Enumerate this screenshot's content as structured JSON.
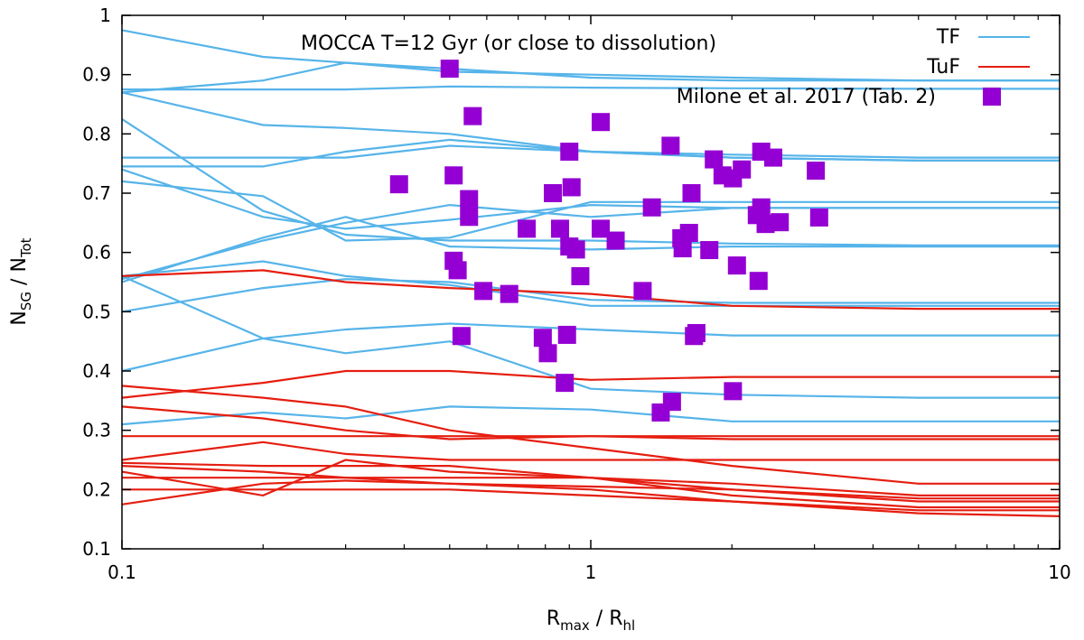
{
  "chart_data": {
    "type": "line",
    "xscale": "log",
    "xlim": [
      0.1,
      10
    ],
    "ylim": [
      0.1,
      1
    ],
    "grid": false,
    "legend_placement": "top-right",
    "title": "MOCCA T=12 Gyr (or close to dissolution)",
    "xlabel": {
      "main": "R",
      "sub1": "max",
      "mid": " / R",
      "sub2": "hl"
    },
    "ylabel": {
      "main": "N",
      "sub1": "SG",
      "mid": " / N",
      "sub2": "Tot"
    },
    "xticks": [
      {
        "v": 0.1,
        "label": "0.1"
      },
      {
        "v": 1,
        "label": "1"
      },
      {
        "v": 10,
        "label": "10"
      }
    ],
    "yticks": [
      {
        "v": 0.1,
        "label": "0.1"
      },
      {
        "v": 0.2,
        "label": "0.2"
      },
      {
        "v": 0.3,
        "label": "0.3"
      },
      {
        "v": 0.4,
        "label": "0.4"
      },
      {
        "v": 0.5,
        "label": "0.5"
      },
      {
        "v": 0.6,
        "label": "0.6"
      },
      {
        "v": 0.7,
        "label": "0.7"
      },
      {
        "v": 0.8,
        "label": "0.8"
      },
      {
        "v": 0.9,
        "label": "0.9"
      },
      {
        "v": 1,
        "label": "1"
      }
    ],
    "line_x": [
      0.1,
      0.2,
      0.3,
      0.5,
      1,
      2,
      5,
      10
    ],
    "series": [
      {
        "name": "TF",
        "color": "#56b4e9",
        "kind": "lines",
        "lines": [
          [
            0.975,
            0.93,
            0.92,
            0.905,
            0.9,
            0.895,
            0.89,
            0.89
          ],
          [
            0.87,
            0.89,
            0.92,
            0.91,
            0.895,
            0.89,
            0.89,
            0.89
          ],
          [
            0.875,
            0.875,
            0.875,
            0.88,
            0.878,
            0.877,
            0.876,
            0.876
          ],
          [
            0.825,
            0.67,
            0.63,
            0.62,
            0.62,
            0.615,
            0.612,
            0.612
          ],
          [
            0.76,
            0.76,
            0.76,
            0.78,
            0.77,
            0.765,
            0.76,
            0.76
          ],
          [
            0.745,
            0.745,
            0.77,
            0.79,
            0.77,
            0.76,
            0.755,
            0.755
          ],
          [
            0.87,
            0.815,
            0.81,
            0.8,
            0.77,
            0.76,
            0.755,
            0.755
          ],
          [
            0.72,
            0.695,
            0.62,
            0.625,
            0.685,
            0.685,
            0.685,
            0.685
          ],
          [
            0.74,
            0.66,
            0.64,
            0.655,
            0.68,
            0.675,
            0.675,
            0.675
          ],
          [
            0.555,
            0.62,
            0.65,
            0.68,
            0.66,
            0.675,
            0.675,
            0.675
          ],
          [
            0.55,
            0.625,
            0.66,
            0.61,
            0.605,
            0.61,
            0.61,
            0.61
          ],
          [
            0.5,
            0.54,
            0.555,
            0.55,
            0.52,
            0.515,
            0.515,
            0.515
          ],
          [
            0.56,
            0.585,
            0.56,
            0.545,
            0.51,
            0.51,
            0.51,
            0.51
          ],
          [
            0.4,
            0.455,
            0.47,
            0.48,
            0.47,
            0.46,
            0.46,
            0.46
          ],
          [
            0.56,
            0.455,
            0.43,
            0.45,
            0.37,
            0.36,
            0.355,
            0.355
          ],
          [
            0.31,
            0.33,
            0.32,
            0.34,
            0.335,
            0.315,
            0.315,
            0.315
          ]
        ]
      },
      {
        "name": "TuF",
        "color": "#e51e10",
        "kind": "lines",
        "lines": [
          [
            0.56,
            0.57,
            0.55,
            0.54,
            0.53,
            0.51,
            0.505,
            0.505
          ],
          [
            0.355,
            0.38,
            0.4,
            0.4,
            0.385,
            0.39,
            0.39,
            0.39
          ],
          [
            0.375,
            0.355,
            0.34,
            0.3,
            0.27,
            0.24,
            0.21,
            0.21
          ],
          [
            0.34,
            0.32,
            0.3,
            0.285,
            0.29,
            0.29,
            0.29,
            0.29
          ],
          [
            0.29,
            0.29,
            0.29,
            0.29,
            0.29,
            0.285,
            0.285,
            0.285
          ],
          [
            0.25,
            0.28,
            0.26,
            0.25,
            0.25,
            0.25,
            0.25,
            0.25
          ],
          [
            0.245,
            0.24,
            0.24,
            0.24,
            0.22,
            0.2,
            0.18,
            0.18
          ],
          [
            0.24,
            0.23,
            0.22,
            0.22,
            0.22,
            0.21,
            0.19,
            0.19
          ],
          [
            0.23,
            0.19,
            0.25,
            0.23,
            0.22,
            0.19,
            0.17,
            0.17
          ],
          [
            0.22,
            0.22,
            0.22,
            0.21,
            0.2,
            0.18,
            0.16,
            0.155
          ],
          [
            0.2,
            0.2,
            0.2,
            0.2,
            0.19,
            0.18,
            0.165,
            0.165
          ],
          [
            0.175,
            0.21,
            0.215,
            0.21,
            0.205,
            0.2,
            0.185,
            0.185
          ]
        ]
      },
      {
        "name": "Milone et al. 2017 (Tab. 2)",
        "color": "#9400d3",
        "kind": "scatter",
        "points": [
          [
            0.5,
            0.91
          ],
          [
            0.56,
            0.83
          ],
          [
            1.05,
            0.82
          ],
          [
            0.39,
            0.715
          ],
          [
            0.51,
            0.73
          ],
          [
            0.55,
            0.69
          ],
          [
            0.55,
            0.66
          ],
          [
            0.9,
            0.77
          ],
          [
            0.83,
            0.7
          ],
          [
            0.91,
            0.71
          ],
          [
            0.73,
            0.64
          ],
          [
            0.86,
            0.64
          ],
          [
            0.9,
            0.61
          ],
          [
            0.93,
            0.605
          ],
          [
            1.05,
            0.64
          ],
          [
            1.13,
            0.62
          ],
          [
            0.95,
            0.56
          ],
          [
            0.51,
            0.586
          ],
          [
            0.52,
            0.57
          ],
          [
            0.59,
            0.535
          ],
          [
            0.67,
            0.53
          ],
          [
            1.29,
            0.535
          ],
          [
            1.35,
            0.676
          ],
          [
            1.48,
            0.78
          ],
          [
            1.64,
            0.7
          ],
          [
            1.83,
            0.757
          ],
          [
            1.91,
            0.73
          ],
          [
            2.01,
            0.725
          ],
          [
            2.1,
            0.74
          ],
          [
            2.31,
            0.77
          ],
          [
            2.45,
            0.76
          ],
          [
            3.02,
            0.738
          ],
          [
            3.07,
            0.659
          ],
          [
            2.26,
            0.663
          ],
          [
            2.31,
            0.676
          ],
          [
            2.36,
            0.648
          ],
          [
            2.53,
            0.651
          ],
          [
            1.56,
            0.624
          ],
          [
            1.62,
            0.633
          ],
          [
            1.57,
            0.607
          ],
          [
            1.79,
            0.604
          ],
          [
            2.05,
            0.578
          ],
          [
            2.28,
            0.552
          ],
          [
            0.53,
            0.459
          ],
          [
            0.79,
            0.456
          ],
          [
            0.89,
            0.461
          ],
          [
            0.81,
            0.43
          ],
          [
            0.88,
            0.38
          ],
          [
            1.49,
            0.348
          ],
          [
            1.41,
            0.33
          ],
          [
            1.68,
            0.464
          ],
          [
            1.66,
            0.459
          ],
          [
            2.01,
            0.366
          ]
        ]
      }
    ]
  }
}
